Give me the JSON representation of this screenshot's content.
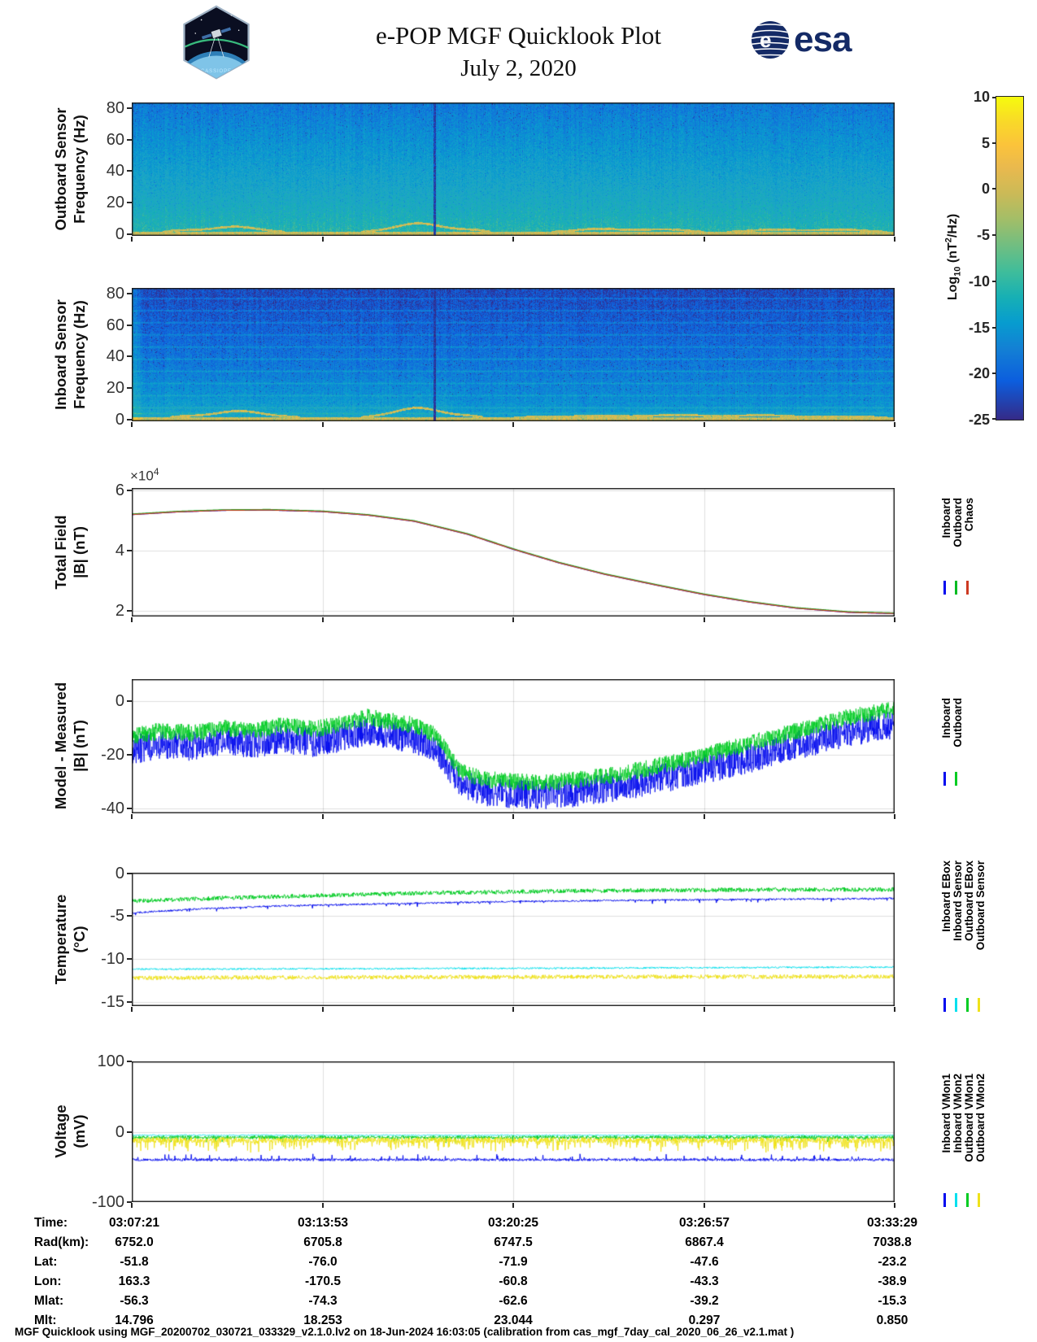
{
  "header": {
    "title": "e-POP MGF Quicklook Plot",
    "date": "July 2, 2020",
    "patch_label": "CASSIOPE",
    "esa_label": "esa"
  },
  "colorbar": {
    "label_pre": "Log",
    "label_sub": "10",
    "label_mid": " (nT",
    "label_sup": "2",
    "label_post": "/Hz)",
    "ticks": [
      10,
      5,
      0,
      -5,
      -10,
      -15,
      -20,
      -25
    ]
  },
  "chart_data": [
    {
      "id": "outboard-spectrogram",
      "type": "heatmap",
      "ylabel1": "Outboard Sensor",
      "ylabel2": "Frequency (Hz)",
      "ylim": [
        -1.2,
        83.5
      ],
      "yticks": [
        0,
        20,
        40,
        60,
        80
      ],
      "x_start": "03:07:21",
      "x_end": "03:33:29",
      "color_range": [
        -25,
        10
      ],
      "value_top": -18,
      "value_bottom": -6.5,
      "noise": 5,
      "col_noise": 1.2,
      "yellow_band_hz": 1.7,
      "gap_frac": 0.397,
      "gap_value": -24,
      "left_bright": 0,
      "lines": [],
      "line_boost": 0,
      "low_boost": [],
      "arcs": [
        {
          "x0": 0.04,
          "x1": 0.2,
          "peak": 3.5
        },
        {
          "x0": 0.3,
          "x1": 0.47,
          "peak": 5.5
        },
        {
          "x0": 0.55,
          "x1": 0.75,
          "peak": 2.5
        },
        {
          "x0": 0.78,
          "x1": 0.99,
          "peak": 2.0
        }
      ],
      "seed": 7,
      "description": "Broadband noise, mostly -18 to -6 log10 nT^2/Hz, yellow band below ~3 Hz, dark data-gap column at ~40% of the pass"
    },
    {
      "id": "inboard-spectrogram",
      "type": "heatmap",
      "ylabel1": "Inboard Sensor",
      "ylabel2": "Frequency (Hz)",
      "ylim": [
        -1.2,
        83.5
      ],
      "yticks": [
        0,
        20,
        40,
        60,
        80
      ],
      "x_start": "03:07:21",
      "x_end": "03:33:29",
      "color_range": [
        -25,
        10
      ],
      "value_top": -22.5,
      "value_bottom": -14.5,
      "noise": 5,
      "col_noise": 1.0,
      "yellow_band_hz": 1.7,
      "gap_frac": 0.397,
      "gap_value": -24,
      "left_bright": 5,
      "lines": [
        4,
        7.7,
        15.4,
        23.1,
        30.8,
        38.5,
        46.2,
        53.9,
        61.6,
        69.3,
        77
      ],
      "line_boost": 4,
      "low_boost": [
        {
          "fmax": 32,
          "xmax": 0.42,
          "amt": 2.2
        },
        {
          "fmax": 14,
          "xmax": 1.0,
          "amt": 1.8
        }
      ],
      "arcs": [
        {
          "x0": 0.05,
          "x1": 0.22,
          "peak": 4.0
        },
        {
          "x0": 0.3,
          "x1": 0.46,
          "peak": 6.0
        },
        {
          "x0": 0.5,
          "x1": 0.99,
          "peak": 1.5
        }
      ],
      "seed": 11,
      "description": "Darker than outboard, narrowband interference lines every ~7.7 Hz, brighter below ~30 Hz before the data gap"
    },
    {
      "id": "total-field",
      "type": "line",
      "ylabel1": "Total Field",
      "ylabel2": "|B| (nT)",
      "multiplier": {
        "base": "×10",
        "exp": "4"
      },
      "ylim": [
        1.82,
        6.08
      ],
      "yticks": [
        2,
        4,
        6
      ],
      "series": [
        {
          "name": "Inboard",
          "color": "#0008ee",
          "lw": 1.4,
          "seed": 1,
          "noise": 0,
          "x": [
            0,
            0.06,
            0.12,
            0.18,
            0.25,
            0.31,
            0.37,
            0.44,
            0.5,
            0.56,
            0.62,
            0.69,
            0.75,
            0.81,
            0.87,
            0.94,
            1.0
          ],
          "y": [
            5.2,
            5.29,
            5.34,
            5.35,
            5.3,
            5.18,
            4.98,
            4.55,
            4.05,
            3.6,
            3.22,
            2.85,
            2.55,
            2.3,
            2.1,
            1.96,
            1.92
          ]
        },
        {
          "name": "Outboard",
          "color": "#00bb22",
          "lw": 1.4,
          "seed": 2,
          "noise": 0,
          "x": [
            0,
            0.06,
            0.12,
            0.18,
            0.25,
            0.31,
            0.37,
            0.44,
            0.5,
            0.56,
            0.62,
            0.69,
            0.75,
            0.81,
            0.87,
            0.94,
            1.0
          ],
          "y": [
            5.215,
            5.305,
            5.355,
            5.365,
            5.315,
            5.195,
            4.995,
            4.565,
            4.065,
            3.615,
            3.235,
            2.865,
            2.565,
            2.315,
            2.115,
            1.975,
            1.935
          ]
        },
        {
          "name": "Chaos",
          "color": "#cd3a22",
          "lw": 1.2,
          "seed": 3,
          "noise": 0,
          "x": [
            0,
            0.06,
            0.12,
            0.18,
            0.25,
            0.31,
            0.37,
            0.44,
            0.5,
            0.56,
            0.62,
            0.69,
            0.75,
            0.81,
            0.87,
            0.94,
            1.0
          ],
          "y": [
            5.2,
            5.29,
            5.34,
            5.35,
            5.3,
            5.18,
            4.98,
            4.55,
            4.05,
            3.6,
            3.22,
            2.85,
            2.55,
            2.3,
            2.1,
            1.96,
            1.92
          ]
        }
      ]
    },
    {
      "id": "model-measured",
      "type": "line",
      "ylabel1": "Model - Measured",
      "ylabel2": "|B| (nT)",
      "ylim": [
        -41.8,
        8.2
      ],
      "yticks": [
        0,
        -20,
        -40
      ],
      "series": [
        {
          "name": "Inboard",
          "color": "#0008ee",
          "lw": 0.8,
          "seed": 21,
          "noise": 5.5,
          "n": 2600,
          "x": [
            0,
            0.04,
            0.08,
            0.12,
            0.16,
            0.2,
            0.24,
            0.28,
            0.31,
            0.34,
            0.37,
            0.4,
            0.43,
            0.46,
            0.5,
            0.54,
            0.58,
            0.62,
            0.66,
            0.7,
            0.74,
            0.78,
            0.82,
            0.86,
            0.9,
            0.94,
            1.0
          ],
          "y": [
            -18,
            -16,
            -17,
            -15,
            -16,
            -14,
            -15.5,
            -13,
            -11,
            -12.5,
            -14,
            -18,
            -30,
            -33.5,
            -34.5,
            -35,
            -34,
            -32.5,
            -31,
            -28.5,
            -26,
            -23.5,
            -20.5,
            -17.5,
            -14.5,
            -11.5,
            -8.5
          ]
        },
        {
          "name": "Outboard",
          "color": "#00cc22",
          "lw": 0.8,
          "seed": 22,
          "noise": 3.2,
          "n": 2600,
          "x": [
            0,
            0.04,
            0.08,
            0.12,
            0.16,
            0.2,
            0.24,
            0.28,
            0.31,
            0.34,
            0.37,
            0.4,
            0.43,
            0.46,
            0.5,
            0.54,
            0.58,
            0.62,
            0.66,
            0.7,
            0.74,
            0.78,
            0.82,
            0.86,
            0.9,
            0.94,
            1.0
          ],
          "y": [
            -13,
            -11,
            -12,
            -10,
            -11,
            -9,
            -10.5,
            -8,
            -6,
            -7.5,
            -9,
            -13,
            -26,
            -29,
            -30,
            -30.5,
            -29.5,
            -28,
            -26,
            -23.5,
            -21,
            -18,
            -15,
            -12,
            -9,
            -6,
            -3
          ]
        }
      ]
    },
    {
      "id": "temperature",
      "type": "line",
      "ylabel1": "Temperature",
      "ylabel2": "(°C)",
      "ylim": [
        -15.5,
        0.05
      ],
      "yticks": [
        0,
        -5,
        -10,
        -15
      ],
      "series": [
        {
          "name": "Inboard EBox",
          "color": "#0008ee",
          "lw": 1.0,
          "seed": 31,
          "noise": 0.1,
          "n": 1600,
          "spike": {
            "prob": 0.04,
            "amp": 0.35,
            "dir": -1
          },
          "x": [
            0,
            0.08,
            0.2,
            0.35,
            0.5,
            0.75,
            1.0
          ],
          "y": [
            -4.65,
            -4.2,
            -3.8,
            -3.55,
            -3.3,
            -3.1,
            -2.95
          ]
        },
        {
          "name": "Inboard Sensor",
          "color": "#00e0ee",
          "lw": 1.0,
          "seed": 32,
          "noise": 0.1,
          "n": 1600,
          "x": [
            0,
            0.5,
            1.0
          ],
          "y": [
            -11.2,
            -11.1,
            -10.95
          ]
        },
        {
          "name": "Outboard EBox",
          "color": "#00cc22",
          "lw": 1.0,
          "seed": 33,
          "noise": 0.25,
          "n": 1600,
          "x": [
            0,
            0.1,
            0.25,
            0.4,
            0.6,
            0.8,
            1.0
          ],
          "y": [
            -3.25,
            -2.95,
            -2.6,
            -2.3,
            -2.05,
            -1.95,
            -1.9
          ]
        },
        {
          "name": "Outboard Sensor",
          "color": "#efe21a",
          "lw": 1.0,
          "seed": 34,
          "noise": 0.25,
          "n": 1600,
          "x": [
            0,
            0.5,
            1.0
          ],
          "y": [
            -12.2,
            -12.1,
            -12.05
          ]
        }
      ]
    },
    {
      "id": "voltage",
      "type": "line",
      "ylabel1": "Voltage",
      "ylabel2": "(mV)",
      "ylim": [
        -100.5,
        100.5
      ],
      "yticks": [
        100,
        0,
        -100
      ],
      "series": [
        {
          "name": "Inboard VMon1",
          "color": "#0008ee",
          "lw": 0.9,
          "seed": 41,
          "noise": 1.8,
          "n": 2000,
          "spike": {
            "prob": 0.06,
            "amp": 7,
            "dir": 1
          },
          "x": [
            0,
            1.0
          ],
          "y": [
            -40,
            -40
          ]
        },
        {
          "name": "Inboard VMon2",
          "color": "#00e0ee",
          "lw": 0.9,
          "seed": 42,
          "noise": 0.8,
          "n": 1200,
          "x": [
            0,
            1.0
          ],
          "y": [
            -5,
            -5
          ]
        },
        {
          "name": "Outboard VMon1",
          "color": "#00cc22",
          "lw": 0.9,
          "seed": 43,
          "noise": 2.5,
          "n": 2000,
          "spike": {
            "prob": 0.05,
            "amp": 6,
            "dir": -1
          },
          "x": [
            0,
            1.0
          ],
          "y": [
            -8,
            -8
          ]
        },
        {
          "name": "Outboard VMon2",
          "color": "#efe21a",
          "lw": 0.9,
          "seed": 44,
          "noise": 4,
          "n": 2200,
          "spike": {
            "prob": 0.18,
            "amp": 14,
            "dir": -1
          },
          "x": [
            0,
            1.0
          ],
          "y": [
            -12,
            -12
          ]
        }
      ]
    }
  ],
  "bottom_table": {
    "rows": [
      {
        "label": "Time:",
        "values": [
          "03:07:21",
          "03:13:53",
          "03:20:25",
          "03:26:57",
          "03:33:29"
        ]
      },
      {
        "label": "Rad(km):",
        "values": [
          "6752.0",
          "6705.8",
          "6747.5",
          "6867.4",
          "7038.8"
        ]
      },
      {
        "label": "Lat:",
        "values": [
          "-51.8",
          "-76.0",
          "-71.9",
          "-47.6",
          "-23.2"
        ]
      },
      {
        "label": "Lon:",
        "values": [
          "163.3",
          "-170.5",
          "-60.8",
          "-43.3",
          "-38.9"
        ]
      },
      {
        "label": "Mlat:",
        "values": [
          "-56.3",
          "-74.3",
          "-62.6",
          "-39.2",
          "-15.3"
        ]
      },
      {
        "label": "Mlt:",
        "values": [
          "14.796",
          "18.253",
          "23.044",
          "0.297",
          "0.850"
        ]
      }
    ]
  },
  "footer": "MGF Quicklook using MGF_20200702_030721_033329_v2.1.0.lv2 on 18-Jun-2024 16:03:05 (calibration from cas_mgf_7day_cal_2020_06_26_v2.1.mat )"
}
